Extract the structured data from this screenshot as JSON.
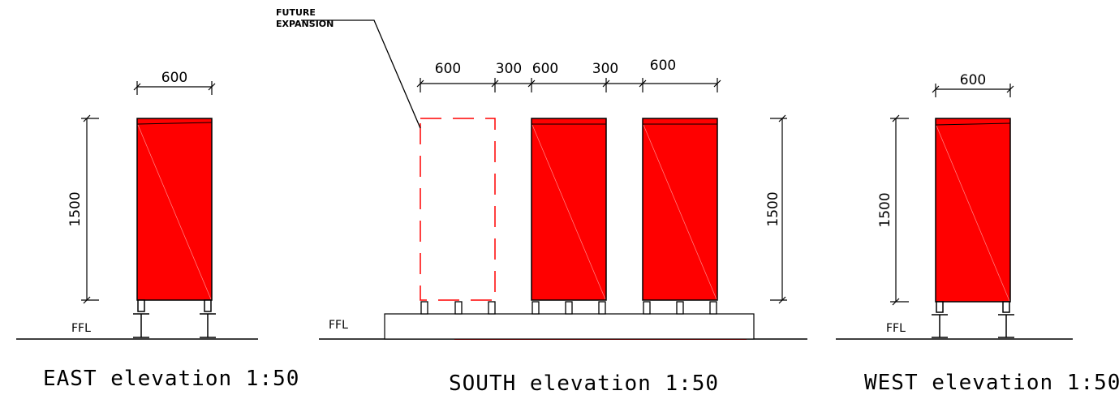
{
  "colors": {
    "panel_fill": "#ff0000",
    "line": "#000000",
    "dashed": "#ff0000",
    "background": "#ffffff"
  },
  "east": {
    "title": "EAST elevation 1:50",
    "width_label": "600",
    "height_label": "1500",
    "ffl_label": "FFL"
  },
  "south": {
    "title": "SOUTH elevation 1:50",
    "future_label_line1": "FUTURE",
    "future_label_line2": "EXPANSION",
    "dims": [
      "600",
      "300",
      "600",
      "300",
      "600"
    ],
    "height_label": "1500",
    "ffl_label": "FFL"
  },
  "west": {
    "title": "WEST elevation 1:50",
    "width_label": "600",
    "height_label": "1500",
    "ffl_label": "FFL"
  }
}
